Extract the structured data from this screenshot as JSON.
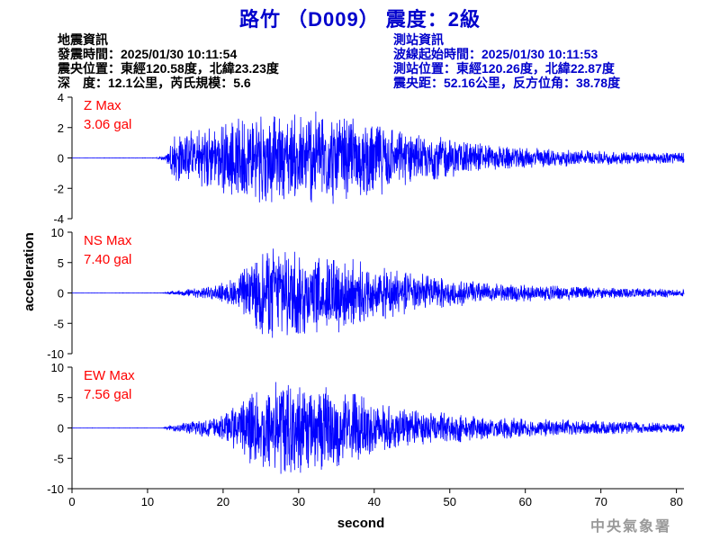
{
  "page": {
    "title": "路竹 （D009） 震度：2級",
    "info_left": [
      "地震資訊",
      "發震時間：2025/01/30 10:11:54",
      "震央位置：東經120.58度，北緯23.23度",
      "深　度：12.1公里，芮氏規模：5.6"
    ],
    "info_right": [
      "測站資訊",
      "波線起始時間：2025/01/30 10:11:53",
      "測站位置：東經120.26度，北緯22.87度",
      "震央距：52.16公里，反方位角：38.78度"
    ],
    "watermark": "中央氣象署"
  },
  "colors": {
    "title": "#0000cc",
    "info_right": "#0000cc",
    "label": "#ff0000",
    "trace": "#0000ff",
    "axis": "#000000"
  },
  "chart_data": {
    "type": "line",
    "xlabel": "second",
    "ylabel": "acceleration",
    "xlim": [
      0,
      81
    ],
    "xticks": [
      0,
      10,
      20,
      30,
      40,
      50,
      60,
      70,
      80
    ],
    "panels": [
      {
        "component": "Z",
        "label": "Z Max",
        "max_text": "3.06 gal",
        "peak": 3.06,
        "ylim": [
          -4,
          4
        ],
        "yticks": [
          -4,
          -2,
          0,
          2,
          4
        ],
        "envelope": [
          [
            0,
            0.005
          ],
          [
            11,
            0.01
          ],
          [
            12.5,
            0.2
          ],
          [
            13.5,
            1.4
          ],
          [
            16,
            1.6
          ],
          [
            20,
            2.0
          ],
          [
            25,
            2.6
          ],
          [
            30,
            2.5
          ],
          [
            35,
            2.7
          ],
          [
            40,
            2.2
          ],
          [
            45,
            1.4
          ],
          [
            50,
            1.1
          ],
          [
            55,
            0.8
          ],
          [
            60,
            0.6
          ],
          [
            70,
            0.4
          ],
          [
            81,
            0.3
          ]
        ]
      },
      {
        "component": "NS",
        "label": "NS Max",
        "max_text": "7.40 gal",
        "peak": 7.4,
        "ylim": [
          -10,
          10
        ],
        "yticks": [
          -10,
          -5,
          0,
          5,
          10
        ],
        "envelope": [
          [
            0,
            0.01
          ],
          [
            12,
            0.02
          ],
          [
            13,
            0.2
          ],
          [
            18,
            0.8
          ],
          [
            22,
            2.0
          ],
          [
            25,
            5.5
          ],
          [
            28,
            6.5
          ],
          [
            32,
            5.0
          ],
          [
            35,
            5.2
          ],
          [
            40,
            3.5
          ],
          [
            45,
            2.6
          ],
          [
            50,
            1.8
          ],
          [
            55,
            1.2
          ],
          [
            60,
            1.1
          ],
          [
            70,
            0.7
          ],
          [
            81,
            0.5
          ]
        ]
      },
      {
        "component": "EW",
        "label": "EW Max",
        "max_text": "7.56 gal",
        "peak": 7.56,
        "ylim": [
          -10,
          10
        ],
        "yticks": [
          -10,
          -5,
          0,
          5,
          10
        ],
        "envelope": [
          [
            0,
            0.01
          ],
          [
            12,
            0.02
          ],
          [
            13,
            0.3
          ],
          [
            16,
            1.0
          ],
          [
            20,
            1.6
          ],
          [
            24,
            5.0
          ],
          [
            26,
            6.0
          ],
          [
            29,
            6.5
          ],
          [
            33,
            5.5
          ],
          [
            37,
            5.0
          ],
          [
            41,
            3.0
          ],
          [
            45,
            2.4
          ],
          [
            50,
            2.0
          ],
          [
            55,
            1.5
          ],
          [
            60,
            1.3
          ],
          [
            70,
            0.9
          ],
          [
            81,
            0.6
          ]
        ]
      }
    ]
  }
}
